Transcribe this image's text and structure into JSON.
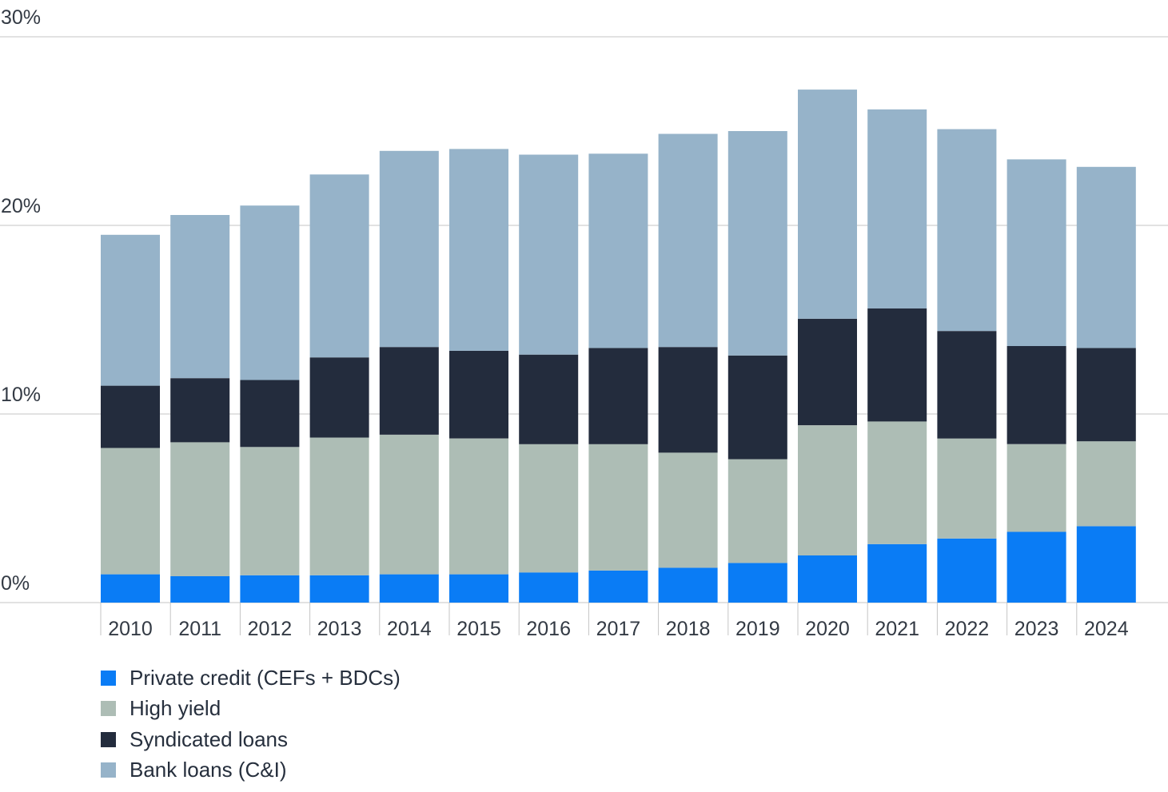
{
  "chart_data": {
    "type": "bar",
    "stacked": true,
    "categories": [
      "2010",
      "2011",
      "2012",
      "2013",
      "2014",
      "2015",
      "2016",
      "2017",
      "2018",
      "2019",
      "2020",
      "2021",
      "2022",
      "2023",
      "2024"
    ],
    "series": [
      {
        "name": "Private credit (CEFs + BDCs)",
        "color": "#0a7cf5",
        "values": [
          1.5,
          1.4,
          1.45,
          1.45,
          1.5,
          1.5,
          1.6,
          1.7,
          1.85,
          2.1,
          2.5,
          3.1,
          3.4,
          3.75,
          4.05
        ]
      },
      {
        "name": "High yield",
        "color": "#adbdb5",
        "values": [
          6.7,
          7.1,
          6.8,
          7.3,
          7.4,
          7.2,
          6.8,
          6.7,
          6.1,
          5.5,
          6.9,
          6.5,
          5.3,
          4.65,
          4.5
        ]
      },
      {
        "name": "Syndicated loans",
        "color": "#232c3d",
        "values": [
          3.3,
          3.4,
          3.55,
          4.25,
          4.65,
          4.65,
          4.75,
          5.1,
          5.6,
          5.5,
          5.65,
          6.0,
          5.7,
          5.2,
          4.95
        ]
      },
      {
        "name": "Bank loans (C&I)",
        "color": "#96b3c9",
        "values": [
          8.0,
          8.65,
          9.25,
          9.7,
          10.4,
          10.7,
          10.6,
          10.3,
          11.3,
          11.9,
          12.15,
          10.55,
          10.7,
          9.9,
          9.6
        ]
      }
    ],
    "y_ticks": [
      "0%",
      "10%",
      "20%",
      "30%"
    ],
    "ylim": [
      0,
      30
    ],
    "grid": true,
    "legend_position": "bottom-left"
  }
}
